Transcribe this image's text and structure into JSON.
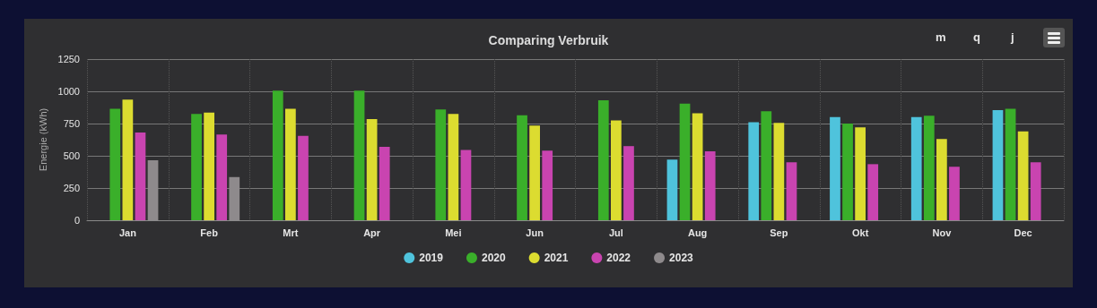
{
  "chart_data": {
    "type": "bar",
    "title": "Comparing Verbruik",
    "ylabel": "Energie (kWh)",
    "categories": [
      "Jan",
      "Feb",
      "Mrt",
      "Apr",
      "Mei",
      "Jun",
      "Jul",
      "Aug",
      "Sep",
      "Okt",
      "Nov",
      "Dec"
    ],
    "series": [
      {
        "name": "2019",
        "color": "#4fc3dc",
        "values": [
          null,
          null,
          null,
          null,
          null,
          null,
          null,
          470,
          760,
          800,
          800,
          855
        ]
      },
      {
        "name": "2020",
        "color": "#3aaf2a",
        "values": [
          865,
          825,
          1005,
          1005,
          860,
          815,
          930,
          905,
          845,
          750,
          810,
          865
        ]
      },
      {
        "name": "2021",
        "color": "#dcdc30",
        "values": [
          935,
          835,
          865,
          785,
          825,
          735,
          775,
          830,
          755,
          720,
          630,
          690
        ]
      },
      {
        "name": "2022",
        "color": "#c944b0",
        "values": [
          680,
          665,
          655,
          570,
          545,
          540,
          575,
          535,
          450,
          435,
          415,
          450
        ]
      },
      {
        "name": "2023",
        "color": "#8e8a8c",
        "values": [
          465,
          335,
          null,
          null,
          null,
          null,
          null,
          null,
          null,
          null,
          null,
          null
        ]
      }
    ],
    "ylim": [
      0,
      1250
    ],
    "yticks": [
      0,
      250,
      500,
      750,
      1000,
      1250
    ],
    "grid": true,
    "legend": "bottom",
    "annotations": [
      "m",
      "q",
      "j"
    ]
  }
}
